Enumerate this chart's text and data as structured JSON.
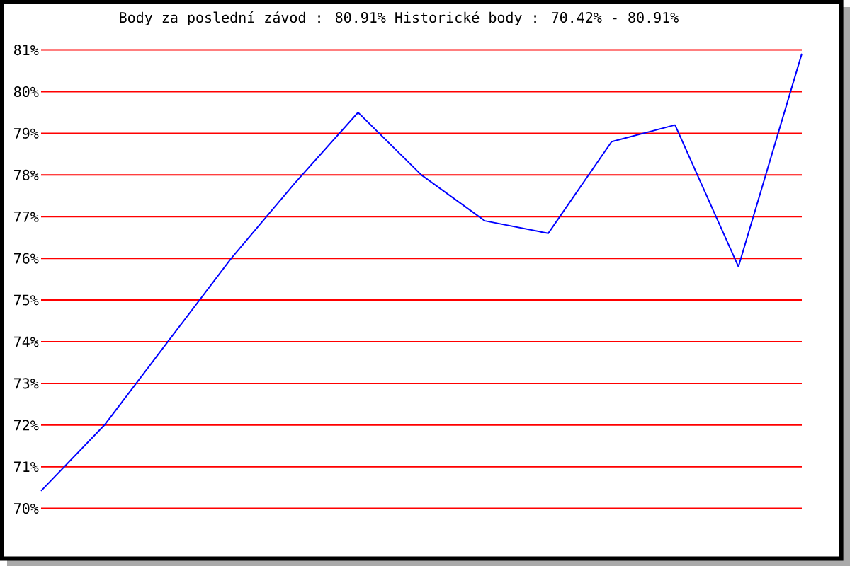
{
  "chart_data": {
    "type": "line",
    "title": "Body za poslední závod : 80.91%  Historické body : 70.42% - 80.91%",
    "categories": [
      null,
      null,
      null,
      null,
      null,
      null,
      null,
      null,
      null,
      null,
      null,
      null,
      null
    ],
    "values": [
      70.42,
      72.0,
      74.0,
      76.0,
      77.8,
      79.5,
      78.0,
      76.9,
      76.6,
      78.8,
      79.2,
      75.8,
      80.91
    ],
    "color": "#0000ff",
    "ylim": [
      70,
      81
    ],
    "yticks": [
      {
        "value": 70,
        "label": "70%"
      },
      {
        "value": 71,
        "label": "71%"
      },
      {
        "value": 72,
        "label": "72%"
      },
      {
        "value": 73,
        "label": "73%"
      },
      {
        "value": 74,
        "label": "74%"
      },
      {
        "value": 75,
        "label": "75%"
      },
      {
        "value": 76,
        "label": "76%"
      },
      {
        "value": 77,
        "label": "77%"
      },
      {
        "value": 78,
        "label": "78%"
      },
      {
        "value": 79,
        "label": "79%"
      },
      {
        "value": 80,
        "label": "80%"
      },
      {
        "value": 81,
        "label": "81%"
      }
    ],
    "grid": "y"
  }
}
